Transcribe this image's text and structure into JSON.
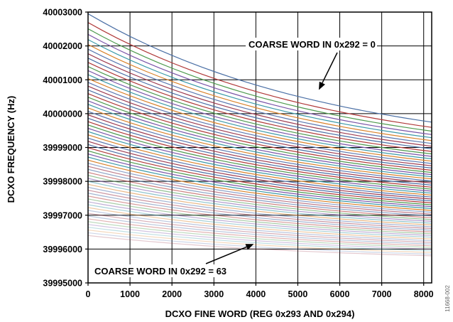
{
  "chart_data": {
    "type": "line",
    "xlabel": "DCXO FINE WORD (REG 0x293 AND 0x294)",
    "ylabel": "DCXO FREQUENCY (Hz)",
    "xlim": [
      0,
      8191
    ],
    "ylim": [
      39995000,
      40003000
    ],
    "x_ticks": [
      "0",
      "1000",
      "2000",
      "3000",
      "4000",
      "5000",
      "6000",
      "7000",
      "8000"
    ],
    "y_ticks": [
      "39995000",
      "39996000",
      "39997000",
      "39998000",
      "39999000",
      "40000000",
      "40001000",
      "40002000",
      "40003000"
    ],
    "grid": true,
    "x": [
      0,
      8191
    ],
    "series_count": 64,
    "curve_shape": "slightly concave decreasing",
    "series_first": {
      "label": "COARSE WORD IN 0x292 = 0",
      "values": [
        40002950,
        39999750
      ]
    },
    "series_last": {
      "label": "COARSE WORD IN 0x292 = 63",
      "values": [
        39996400,
        39995800
      ]
    },
    "series_colors": [
      "#4a6fa5",
      "#b03a3a",
      "#4e9a4e",
      "#7a55a8",
      "#3c9aa8",
      "#d9822b",
      "#5a78b0",
      "#9e3d52"
    ],
    "annotations": [
      {
        "text": "COARSE WORD IN 0x292 = 0",
        "points_to": {
          "x": 5500,
          "y": 40000700
        }
      },
      {
        "text": "COARSE WORD IN 0x292 = 63",
        "points_to": {
          "x": 3950,
          "y": 39996150
        }
      }
    ],
    "figure_id": "11668-002"
  }
}
